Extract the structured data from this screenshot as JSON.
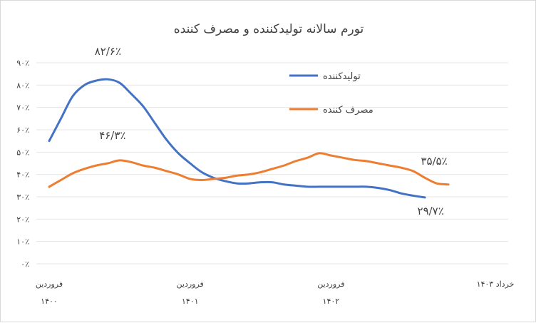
{
  "chart_data": {
    "type": "line",
    "title": "تورم سالانه تولیدکننده و مصرف کننده",
    "xlabel": "",
    "ylabel": "",
    "ylim": [
      0,
      90
    ],
    "yticks": [
      "۰٪",
      "۱۰٪",
      "۲۰٪",
      "۳۰٪",
      "۴۰٪",
      "۵۰٪",
      "۶۰٪",
      "۷۰٪",
      "۸۰٪",
      "۹۰٪"
    ],
    "grid": true,
    "legend_position": "top-right",
    "x_ticks": [
      {
        "index": 0,
        "lines": [
          "فروردین",
          "۱۴۰۰"
        ]
      },
      {
        "index": 12,
        "lines": [
          "فروردین",
          "۱۴۰۱"
        ]
      },
      {
        "index": 24,
        "lines": [
          "فروردین",
          "۱۴۰۲"
        ]
      },
      {
        "index": 38,
        "lines": [
          "خرداد ۱۴۰۳"
        ]
      }
    ],
    "x_count": 39,
    "series": [
      {
        "name": "تولیدکننده",
        "color": "#4472c4",
        "values": [
          55,
          65,
          75,
          80,
          82,
          82.6,
          81,
          76,
          70.5,
          63,
          55.5,
          49.5,
          45,
          41,
          38.5,
          37,
          36,
          36,
          36.5,
          36.5,
          35.5,
          35,
          34.5,
          34.5,
          34.5,
          34.5,
          34.5,
          34.5,
          34,
          33,
          31.5,
          30.5,
          29.7
        ]
      },
      {
        "name": "مصرف کننده",
        "color": "#ed7d31",
        "values": [
          34.5,
          37.5,
          40.5,
          42.5,
          44,
          45,
          46.3,
          45.5,
          44,
          43,
          41.5,
          40,
          38,
          37.5,
          38,
          38.5,
          39.5,
          40,
          41,
          42.5,
          44,
          46,
          47.5,
          49.5,
          48.5,
          47.5,
          46.5,
          46,
          45,
          44,
          43,
          41.5,
          38.5,
          36,
          35.5
        ]
      }
    ],
    "data_labels": [
      {
        "series": 0,
        "index": 5,
        "text": "۸۲/۶٪",
        "dx": 0,
        "dy": -34
      },
      {
        "series": 1,
        "index": 6,
        "text": "۴۶/۳٪",
        "dx": -10,
        "dy": -30
      },
      {
        "series": 1,
        "index": 34,
        "text": "۳۵/۵٪",
        "dx": -20,
        "dy": -28
      },
      {
        "series": 0,
        "index": 32,
        "text": "۲۹/۷٪",
        "dx": 8,
        "dy": 24
      }
    ]
  }
}
